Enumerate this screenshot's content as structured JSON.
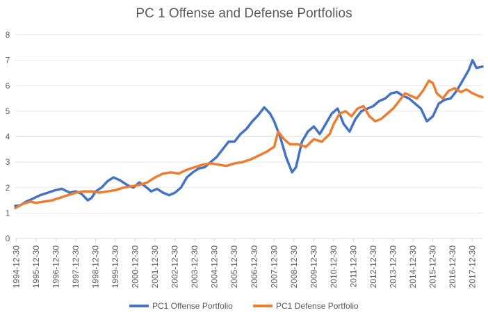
{
  "chart_data": {
    "type": "line",
    "title": "PC 1 Offense and Defense Portfolios",
    "xlabel": "",
    "ylabel": "",
    "ylim": [
      0,
      8
    ],
    "yticks": [
      "0",
      "1",
      "2",
      "3",
      "4",
      "5",
      "6",
      "7",
      "8"
    ],
    "x": [
      "1994-12-30",
      "1995-12-30",
      "1996-12-30",
      "1997-12-30",
      "1998-12-30",
      "1999-12-30",
      "2000-12-30",
      "2001-12-30",
      "2002-12-30",
      "2003-12-30",
      "2004-12-30",
      "2005-12-30",
      "2006-12-30",
      "2007-12-30",
      "2008-12-30",
      "2009-12-30",
      "2010-12-30",
      "2011-12-30",
      "2012-12-30",
      "2013-12-30",
      "2014-12-30",
      "2015-12-30",
      "2016-12-30",
      "2017-12-30"
    ],
    "x_extent": [
      1994.95,
      2018.5
    ],
    "grid": true,
    "legend_position": "bottom",
    "series": [
      {
        "name": "PC1 Offense Portfolio",
        "color": "#4472C4",
        "points": [
          [
            1994.95,
            1.28
          ],
          [
            1995.2,
            1.3
          ],
          [
            1995.5,
            1.45
          ],
          [
            1995.8,
            1.55
          ],
          [
            1996.2,
            1.7
          ],
          [
            1996.6,
            1.8
          ],
          [
            1996.9,
            1.88
          ],
          [
            1997.3,
            1.95
          ],
          [
            1997.7,
            1.8
          ],
          [
            1998.0,
            1.85
          ],
          [
            1998.3,
            1.75
          ],
          [
            1998.6,
            1.5
          ],
          [
            1998.8,
            1.6
          ],
          [
            1999.0,
            1.85
          ],
          [
            1999.3,
            2.0
          ],
          [
            1999.6,
            2.25
          ],
          [
            1999.9,
            2.4
          ],
          [
            2000.2,
            2.3
          ],
          [
            2000.6,
            2.1
          ],
          [
            2000.9,
            2.0
          ],
          [
            2001.2,
            2.2
          ],
          [
            2001.5,
            2.05
          ],
          [
            2001.8,
            1.85
          ],
          [
            2002.1,
            1.95
          ],
          [
            2002.4,
            1.8
          ],
          [
            2002.7,
            1.7
          ],
          [
            2003.0,
            1.8
          ],
          [
            2003.3,
            2.0
          ],
          [
            2003.6,
            2.4
          ],
          [
            2003.9,
            2.6
          ],
          [
            2004.2,
            2.75
          ],
          [
            2004.5,
            2.8
          ],
          [
            2004.8,
            3.0
          ],
          [
            2005.1,
            3.2
          ],
          [
            2005.4,
            3.5
          ],
          [
            2005.7,
            3.8
          ],
          [
            2006.0,
            3.8
          ],
          [
            2006.3,
            4.1
          ],
          [
            2006.6,
            4.3
          ],
          [
            2006.9,
            4.6
          ],
          [
            2007.2,
            4.85
          ],
          [
            2007.5,
            5.15
          ],
          [
            2007.8,
            4.9
          ],
          [
            2008.0,
            4.6
          ],
          [
            2008.3,
            4.0
          ],
          [
            2008.6,
            3.2
          ],
          [
            2008.9,
            2.6
          ],
          [
            2009.1,
            2.8
          ],
          [
            2009.4,
            3.8
          ],
          [
            2009.7,
            4.2
          ],
          [
            2010.0,
            4.4
          ],
          [
            2010.3,
            4.1
          ],
          [
            2010.6,
            4.5
          ],
          [
            2010.9,
            4.9
          ],
          [
            2011.2,
            5.1
          ],
          [
            2011.5,
            4.5
          ],
          [
            2011.8,
            4.2
          ],
          [
            2012.1,
            4.7
          ],
          [
            2012.4,
            5.0
          ],
          [
            2012.7,
            5.1
          ],
          [
            2013.0,
            5.2
          ],
          [
            2013.3,
            5.4
          ],
          [
            2013.6,
            5.5
          ],
          [
            2013.9,
            5.7
          ],
          [
            2014.2,
            5.75
          ],
          [
            2014.5,
            5.6
          ],
          [
            2014.8,
            5.5
          ],
          [
            2015.1,
            5.3
          ],
          [
            2015.4,
            5.1
          ],
          [
            2015.7,
            4.6
          ],
          [
            2016.0,
            4.8
          ],
          [
            2016.3,
            5.3
          ],
          [
            2016.6,
            5.45
          ],
          [
            2016.9,
            5.5
          ],
          [
            2017.2,
            5.8
          ],
          [
            2017.5,
            6.2
          ],
          [
            2017.8,
            6.6
          ],
          [
            2018.0,
            7.0
          ],
          [
            2018.2,
            6.7
          ],
          [
            2018.5,
            6.75
          ]
        ]
      },
      {
        "name": "PC1 Defense Portfolio",
        "color": "#ED7D31",
        "points": [
          [
            1994.95,
            1.2
          ],
          [
            1995.3,
            1.35
          ],
          [
            1995.7,
            1.45
          ],
          [
            1996.0,
            1.4
          ],
          [
            1996.4,
            1.45
          ],
          [
            1996.8,
            1.5
          ],
          [
            1997.2,
            1.6
          ],
          [
            1997.6,
            1.7
          ],
          [
            1998.0,
            1.8
          ],
          [
            1998.4,
            1.85
          ],
          [
            1998.8,
            1.85
          ],
          [
            1999.2,
            1.8
          ],
          [
            1999.6,
            1.85
          ],
          [
            2000.0,
            1.9
          ],
          [
            2000.4,
            2.0
          ],
          [
            2000.8,
            2.05
          ],
          [
            2001.2,
            2.1
          ],
          [
            2001.6,
            2.2
          ],
          [
            2002.0,
            2.4
          ],
          [
            2002.4,
            2.55
          ],
          [
            2002.8,
            2.6
          ],
          [
            2003.2,
            2.55
          ],
          [
            2003.6,
            2.7
          ],
          [
            2004.0,
            2.8
          ],
          [
            2004.4,
            2.9
          ],
          [
            2004.8,
            2.95
          ],
          [
            2005.2,
            2.9
          ],
          [
            2005.6,
            2.85
          ],
          [
            2006.0,
            2.95
          ],
          [
            2006.4,
            3.0
          ],
          [
            2006.8,
            3.1
          ],
          [
            2007.2,
            3.25
          ],
          [
            2007.6,
            3.4
          ],
          [
            2008.0,
            3.6
          ],
          [
            2008.2,
            4.2
          ],
          [
            2008.5,
            3.9
          ],
          [
            2008.8,
            3.7
          ],
          [
            2009.2,
            3.7
          ],
          [
            2009.6,
            3.6
          ],
          [
            2010.0,
            3.9
          ],
          [
            2010.4,
            3.8
          ],
          [
            2010.8,
            4.1
          ],
          [
            2011.0,
            4.5
          ],
          [
            2011.3,
            4.9
          ],
          [
            2011.6,
            5.0
          ],
          [
            2011.9,
            4.8
          ],
          [
            2012.2,
            5.1
          ],
          [
            2012.5,
            5.2
          ],
          [
            2012.8,
            4.8
          ],
          [
            2013.1,
            4.6
          ],
          [
            2013.4,
            4.7
          ],
          [
            2013.7,
            4.9
          ],
          [
            2014.0,
            5.1
          ],
          [
            2014.3,
            5.4
          ],
          [
            2014.6,
            5.7
          ],
          [
            2014.9,
            5.6
          ],
          [
            2015.2,
            5.5
          ],
          [
            2015.5,
            5.8
          ],
          [
            2015.8,
            6.2
          ],
          [
            2016.0,
            6.1
          ],
          [
            2016.2,
            5.7
          ],
          [
            2016.5,
            5.5
          ],
          [
            2016.8,
            5.8
          ],
          [
            2017.1,
            5.9
          ],
          [
            2017.4,
            5.75
          ],
          [
            2017.7,
            5.85
          ],
          [
            2018.0,
            5.7
          ],
          [
            2018.3,
            5.6
          ],
          [
            2018.5,
            5.55
          ]
        ]
      }
    ]
  }
}
